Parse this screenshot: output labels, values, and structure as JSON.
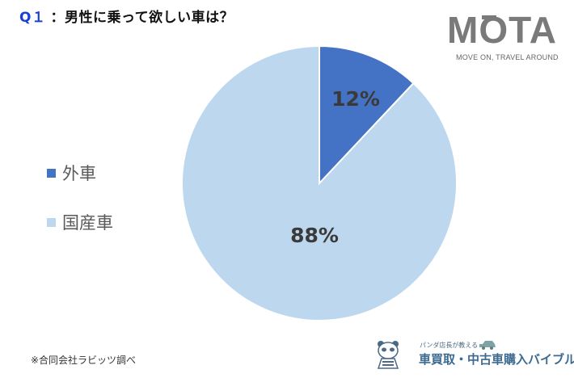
{
  "title": {
    "prefix": "Q１",
    "text": "：男性に乗って欲しい車は？"
  },
  "brand": {
    "logo_text": "MOTA",
    "tagline": "MOVE ON, TRAVEL AROUND"
  },
  "legend": {
    "items": [
      {
        "label": "外車",
        "color": "#4472c4"
      },
      {
        "label": "国産車",
        "color": "#bdd7ee"
      }
    ]
  },
  "note": "※合同会社ラビッツ調べ",
  "footer_logo": {
    "subtitle": "パンダ店長が教える",
    "title": "車買取・中古車購入バイブル"
  },
  "chart_data": {
    "type": "pie",
    "title": "Q１：男性に乗って欲しい車は？",
    "categories": [
      "外車",
      "国産車"
    ],
    "values": [
      12,
      88
    ],
    "labels": [
      "12%",
      "88%"
    ],
    "colors": [
      "#4472c4",
      "#bdd7ee"
    ],
    "start_angle": "12 o'clock, clockwise",
    "legend_position": "left"
  }
}
